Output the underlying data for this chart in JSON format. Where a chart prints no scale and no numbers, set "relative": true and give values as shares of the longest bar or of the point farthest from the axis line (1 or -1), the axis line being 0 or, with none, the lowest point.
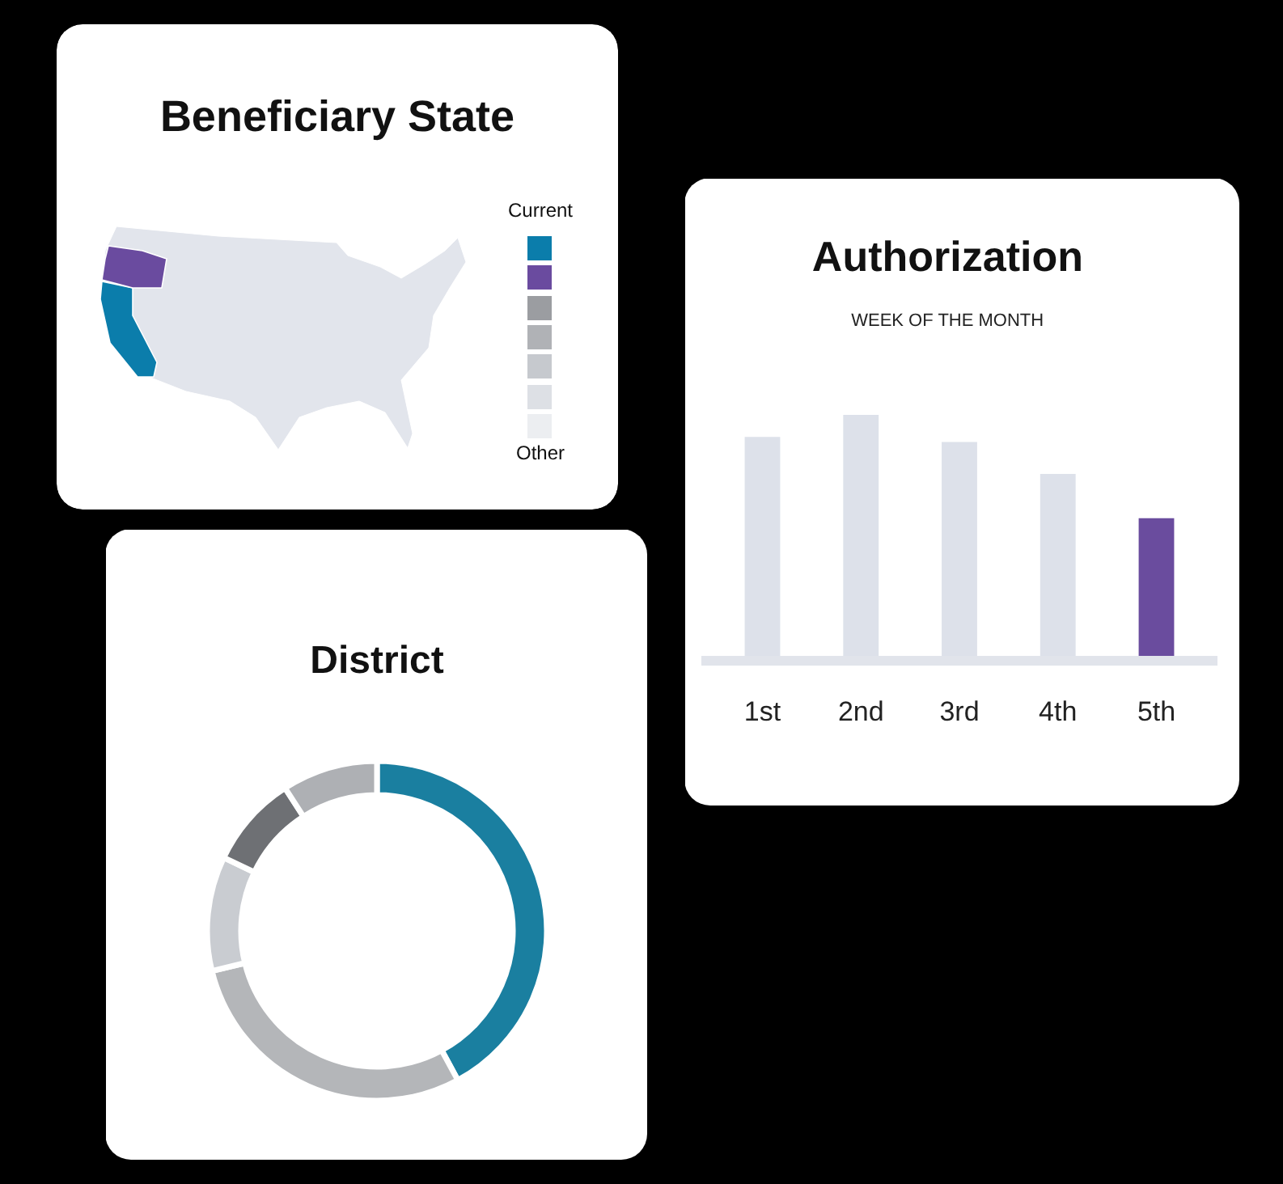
{
  "chart_data": [
    {
      "type": "other",
      "title": "Beneficiary State",
      "colors": [
        "#0b7dab",
        "#6a4b9f",
        "#9b9da1",
        "#b0b2b6",
        "#c6c9ce",
        "#dde0e5",
        "#eceef1"
      ],
      "annotations": [
        "Current",
        "Other"
      ]
    },
    {
      "type": "bar",
      "title": "Authorization",
      "subtitle": "WEEK OF THE MONTH",
      "categories": [
        "1st",
        "2nd",
        "3rd",
        "4th",
        "5th"
      ],
      "values": [
        0.91,
        1,
        0.89,
        0.76,
        0.58
      ],
      "colors": [
        "#dde1ea",
        "#dde1ea",
        "#dde1ea",
        "#dde1ea",
        "#6a4c9e"
      ],
      "relative": true
    },
    {
      "type": "donut",
      "title": "District",
      "categories": [
        null,
        null,
        null,
        null,
        null
      ],
      "values": [
        42.1,
        29.1,
        10.9,
        8.8,
        9.1
      ],
      "colors": [
        "#1a7fa0",
        "#b4b6b9",
        "#c9ccd1",
        "#6e7074",
        "#aeb0b4"
      ]
    }
  ]
}
